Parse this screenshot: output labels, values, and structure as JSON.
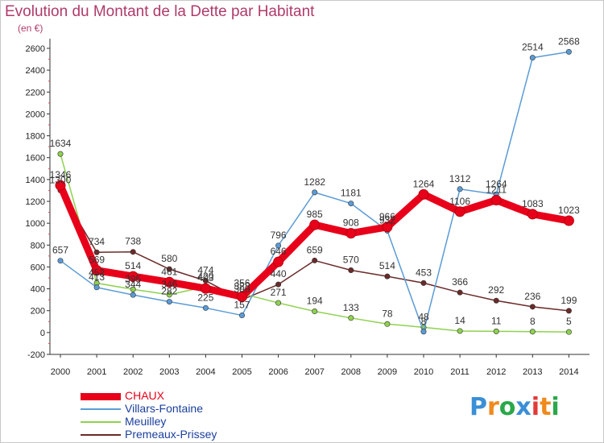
{
  "chart_data": {
    "type": "line",
    "title": "Evolution du Montant de la Dette par Habitant",
    "ylabel": "(en €)",
    "xlabel": "",
    "ylim": [
      -200,
      2600
    ],
    "yticks": [
      -200,
      0,
      200,
      400,
      600,
      800,
      1000,
      1200,
      1400,
      1600,
      1800,
      2000,
      2200,
      2400,
      2600
    ],
    "categories": [
      "2000",
      "2001",
      "2002",
      "2003",
      "2004",
      "2005",
      "2006",
      "2007",
      "2008",
      "2009",
      "2010",
      "2011",
      "2012",
      "2013",
      "2014"
    ],
    "grid": false,
    "legend_position": "bottom-left",
    "series": [
      {
        "name": "CHAUX",
        "color": "#e8001a",
        "values": [
          1346,
          569,
          514,
          461,
          403,
          328,
          646,
          985,
          908,
          966,
          1264,
          1106,
          1211,
          1083,
          1023
        ],
        "labels": [
          "1346",
          "569",
          "514",
          "461",
          "403",
          "328",
          "646",
          "985",
          "908",
          "966",
          "1264",
          "1106",
          "1211",
          "1083",
          "1023"
        ]
      },
      {
        "name": "Villars-Fontaine",
        "color": "#5b9bd5",
        "values": [
          657,
          413,
          344,
          282,
          225,
          157,
          796,
          1282,
          1181,
          932,
          8,
          1312,
          1264,
          2514,
          2568
        ],
        "labels": [
          "657",
          "413",
          "344",
          "282",
          "225",
          "157",
          "796",
          "1282",
          "1181",
          "932",
          "8",
          "1312",
          "1264",
          "2514",
          "2568"
        ]
      },
      {
        "name": "Meuilley",
        "color": "#8fd14f",
        "values": [
          1634,
          452,
          395,
          346,
          420,
          356,
          271,
          194,
          133,
          78,
          48,
          14,
          11,
          8,
          5
        ],
        "labels": [
          "1634",
          "452",
          "395",
          "346",
          "420",
          "356",
          "271",
          "194",
          "133",
          "78",
          "48",
          "14",
          "11",
          "8",
          "5"
        ]
      },
      {
        "name": "Premeaux-Prissey",
        "color": "#6b2a2a",
        "values": [
          1300,
          734,
          738,
          580,
          474,
          300,
          440,
          659,
          570,
          514,
          453,
          366,
          292,
          236,
          199
        ],
        "labels": [
          "1300",
          "734",
          "738",
          "580",
          "474",
          "300",
          "440",
          "659",
          "570",
          "514",
          "453",
          "366",
          "292",
          "236",
          "199"
        ]
      }
    ]
  },
  "logo": {
    "letters": [
      "P",
      "r",
      "o",
      "x",
      "i",
      "t",
      "i"
    ],
    "colors": [
      "#3a8fd6",
      "#f08a1c",
      "#2aa84a",
      "#3a8fd6",
      "#e23a3a",
      "#f08a1c",
      "#2aa84a"
    ]
  }
}
